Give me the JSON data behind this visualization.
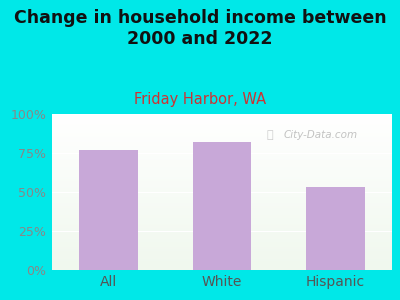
{
  "title": "Change in household income between\n2000 and 2022",
  "subtitle": "Friday Harbor, WA",
  "categories": [
    "All",
    "White",
    "Hispanic"
  ],
  "values": [
    77,
    82,
    53
  ],
  "bar_color": "#c8a8d8",
  "title_fontsize": 12.5,
  "subtitle_fontsize": 10.5,
  "subtitle_color": "#cc3333",
  "title_color": "#111111",
  "tick_color": "#888888",
  "ytick_color": "#888888",
  "xtick_color": "#555555",
  "background_outer": "#00e8e8",
  "background_top": "#f0f8ee",
  "background_bottom": "#ffffff",
  "ylim": [
    0,
    100
  ],
  "yticks": [
    0,
    25,
    50,
    75,
    100
  ],
  "ytick_labels": [
    "0%",
    "25%",
    "50%",
    "75%",
    "100%"
  ],
  "watermark": "City-Data.com",
  "xlabel_fontsize": 10,
  "grid_color": "#e0e0e0"
}
